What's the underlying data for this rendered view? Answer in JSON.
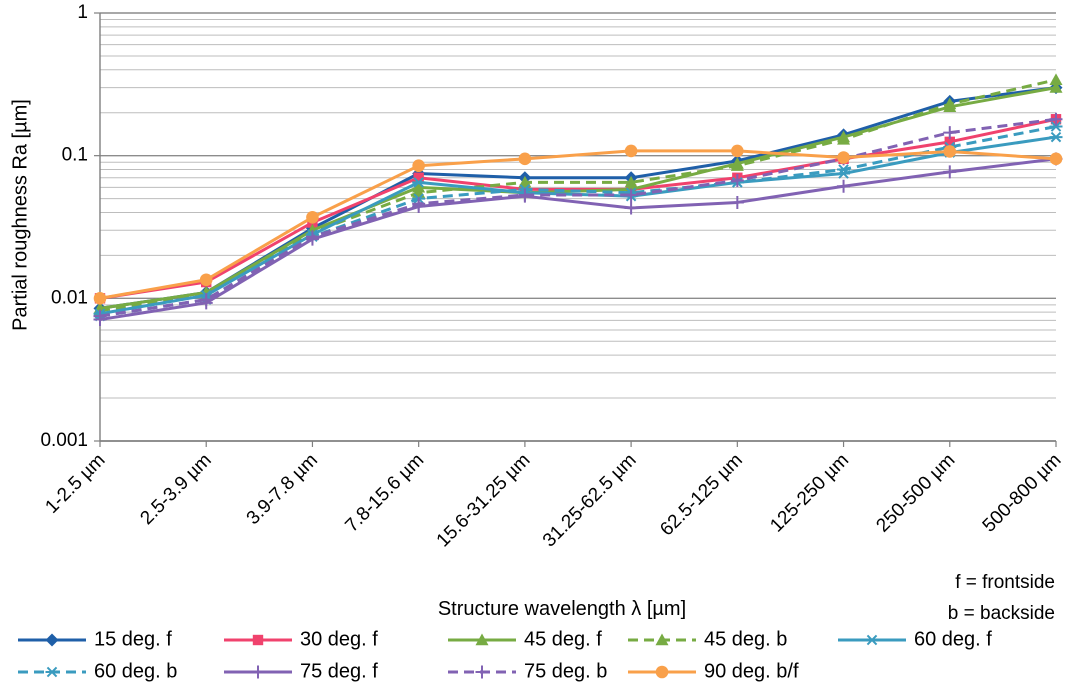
{
  "chart_data": {
    "type": "line",
    "title": "",
    "xlabel": "Structure wavelength λ [µm]",
    "ylabel": "Partial  roughness Ra [µm]",
    "yscale": "log",
    "ylim": [
      0.001,
      1
    ],
    "y_ticks": [
      0.001,
      0.01,
      0.1,
      1
    ],
    "y_tick_labels": [
      "0.001",
      "0.01",
      "0.1",
      "1"
    ],
    "grid": true,
    "legend_position": "bottom",
    "categories": [
      "1-2.5 µm",
      "2.5-3.9 µm",
      "3.9-7.8 µm",
      "7.8-15.6 µm",
      "15.6-31.25 µm",
      "31.25-62.5 µm",
      "62.5-125 µm",
      "125-250 µm",
      "250-500 µm",
      "500-800 µm"
    ],
    "annotations": [
      "f = frontside",
      "b = backside"
    ],
    "series": [
      {
        "name": "15 deg. f",
        "color": "#1f5fa8",
        "dash": "solid",
        "marker": "diamond",
        "values": [
          0.0085,
          0.011,
          0.031,
          0.075,
          0.07,
          0.07,
          0.092,
          0.14,
          0.24,
          0.3
        ]
      },
      {
        "name": "30 deg. f",
        "color": "#f0426d",
        "dash": "solid",
        "marker": "square",
        "values": [
          0.01,
          0.013,
          0.034,
          0.07,
          0.058,
          0.058,
          0.07,
          0.095,
          0.125,
          0.18
        ]
      },
      {
        "name": "45 deg. f",
        "color": "#77ab43",
        "dash": "solid",
        "marker": "triangle",
        "values": [
          0.0085,
          0.011,
          0.03,
          0.06,
          0.055,
          0.058,
          0.088,
          0.135,
          0.22,
          0.3
        ]
      },
      {
        "name": "45 deg. b",
        "color": "#77ab43",
        "dash": "dashed",
        "marker": "triangle",
        "values": [
          0.0082,
          0.0105,
          0.029,
          0.055,
          0.065,
          0.065,
          0.085,
          0.13,
          0.23,
          0.34
        ]
      },
      {
        "name": "60 deg. f",
        "color": "#3a9bbf",
        "dash": "solid",
        "marker": "asterisk",
        "values": [
          0.0078,
          0.0105,
          0.028,
          0.065,
          0.055,
          0.052,
          0.065,
          0.075,
          0.105,
          0.135
        ]
      },
      {
        "name": "60 deg. b",
        "color": "#3a9bbf",
        "dash": "dashed",
        "marker": "asterisk",
        "values": [
          0.0075,
          0.0098,
          0.027,
          0.05,
          0.058,
          0.055,
          0.065,
          0.08,
          0.115,
          0.16
        ]
      },
      {
        "name": "75 deg. f",
        "color": "#8162b3",
        "dash": "solid",
        "marker": "plus",
        "values": [
          0.0071,
          0.0093,
          0.026,
          0.044,
          0.052,
          0.043,
          0.047,
          0.061,
          0.077,
          0.095
        ]
      },
      {
        "name": "75 deg. b",
        "color": "#8162b3",
        "dash": "dashed",
        "marker": "plus",
        "values": [
          0.0075,
          0.0098,
          0.027,
          0.046,
          0.053,
          0.053,
          0.067,
          0.095,
          0.145,
          0.18
        ]
      },
      {
        "name": "90 deg. b/f",
        "color": "#f9a04a",
        "dash": "solid",
        "marker": "circle",
        "values": [
          0.01,
          0.0135,
          0.037,
          0.085,
          0.095,
          0.108,
          0.108,
          0.097,
          0.107,
          0.095
        ]
      }
    ]
  }
}
